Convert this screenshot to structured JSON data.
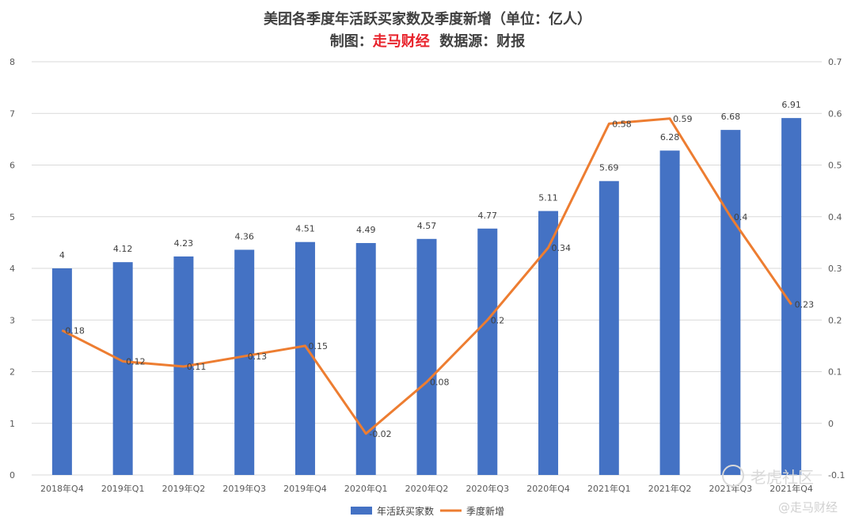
{
  "title": "美团各季度年活跃买家数及季度新增（单位：亿人）",
  "subtitle": {
    "prefix": "制图：",
    "brand": "走马财经",
    "suffix": "数据源：财报"
  },
  "watermarks": {
    "community": "老虎社区",
    "author": "@走马财经"
  },
  "colors": {
    "bar": "#4472c4",
    "line": "#ed7d31",
    "grid": "#d9d9d9",
    "brand": "#e8222b"
  },
  "chart_data": {
    "type": "bar",
    "categories": [
      "2018年Q4",
      "2019年Q1",
      "2019年Q2",
      "2019年Q3",
      "2019年Q4",
      "2020年Q1",
      "2020年Q2",
      "2020年Q3",
      "2020年Q4",
      "2021年Q1",
      "2021年Q2",
      "2021年Q3",
      "2021年Q4"
    ],
    "series": [
      {
        "name": "年活跃买家数",
        "type": "bar",
        "axis": "left",
        "values": [
          4,
          4.12,
          4.23,
          4.36,
          4.51,
          4.49,
          4.57,
          4.77,
          5.11,
          5.69,
          6.28,
          6.68,
          6.91
        ],
        "labels": [
          "4",
          "4.12",
          "4.23",
          "4.36",
          "4.51",
          "4.49",
          "4.57",
          "4.77",
          "5.11",
          "5.69",
          "6.28",
          "6.68",
          "6.91"
        ]
      },
      {
        "name": "季度新增",
        "type": "line",
        "axis": "right",
        "values": [
          0.18,
          0.12,
          0.11,
          0.13,
          0.15,
          -0.02,
          0.08,
          0.2,
          0.34,
          0.58,
          0.59,
          0.4,
          0.23
        ],
        "labels": [
          "0.18",
          "0.12",
          "0.11",
          "0.13",
          "0.15",
          "-0.02",
          "0.08",
          "0.2",
          "0.34",
          "0.58",
          "0.59",
          "0.4",
          "0.23"
        ]
      }
    ],
    "y_left": {
      "min": 0,
      "max": 8,
      "ticks": [
        "0",
        "1",
        "2",
        "3",
        "4",
        "5",
        "6",
        "7",
        "8"
      ]
    },
    "y_right": {
      "min": -0.1,
      "max": 0.7,
      "ticks": [
        "-0.1",
        "0",
        "0.1",
        "0.2",
        "0.3",
        "0.4",
        "0.5",
        "0.6",
        "0.7"
      ]
    },
    "grid": true,
    "legend_position": "bottom"
  }
}
